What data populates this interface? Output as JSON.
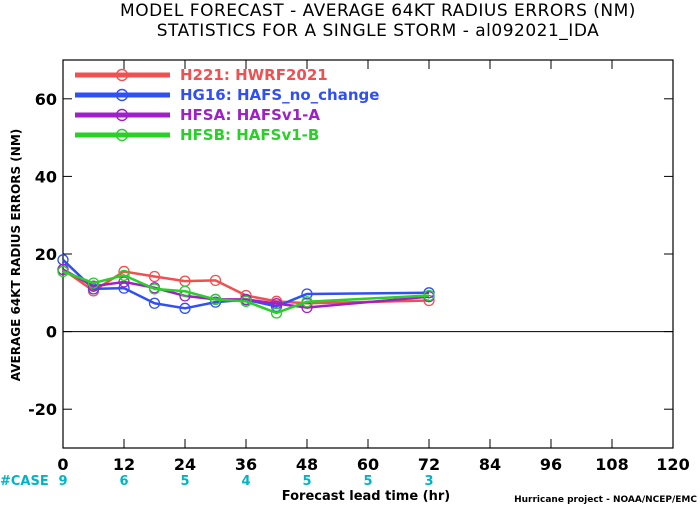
{
  "chart_data": {
    "type": "line",
    "title": "MODEL FORECAST - AVERAGE 64KT RADIUS ERRORS (NM)",
    "subtitle": "STATISTICS FOR A SINGLE STORM - al092021_IDA",
    "xlabel": "Forecast lead time (hr)",
    "ylabel": "AVERAGE 64KT RADIUS ERRORS (NM)",
    "xlim": [
      0,
      120
    ],
    "ylim": [
      -30,
      70
    ],
    "x_ticks": [
      0,
      12,
      24,
      36,
      48,
      60,
      72,
      84,
      96,
      108,
      120
    ],
    "y_ticks": [
      -20,
      0,
      20,
      40,
      60
    ],
    "grid": false,
    "zero_line": true,
    "legend_position": "top-left",
    "series": [
      {
        "name": "H221: HWRF2021",
        "color": "#f05050",
        "x": [
          0,
          6,
          12,
          18,
          24,
          30,
          36,
          42,
          48,
          72
        ],
        "y": [
          16,
          10.5,
          15.5,
          14.2,
          13,
          13.2,
          9.3,
          7.8,
          7.3,
          8
        ]
      },
      {
        "name": "HG16: HAFS_no_change",
        "color": "#3050f0",
        "x": [
          0,
          6,
          12,
          18,
          24,
          30,
          36,
          42,
          48,
          72
        ],
        "y": [
          18.5,
          11,
          11.2,
          7.3,
          6,
          7.6,
          8.2,
          6.5,
          9.7,
          10
        ]
      },
      {
        "name": "HFSA: HAFSv1-A",
        "color": "#a020c8",
        "x": [
          0,
          6,
          12,
          18,
          24,
          30,
          36,
          42,
          48,
          72
        ],
        "y": [
          16,
          11.7,
          12.8,
          11.3,
          9.2,
          8.3,
          8.3,
          7.2,
          6.2,
          9
        ]
      },
      {
        "name": "HFSB: HAFSv1-B",
        "color": "#28d028",
        "x": [
          0,
          6,
          12,
          18,
          24,
          30,
          36,
          42,
          48,
          72
        ],
        "y": [
          15.5,
          12.5,
          14.5,
          11,
          10.4,
          8.3,
          7.8,
          4.8,
          7.7,
          9.3
        ]
      }
    ],
    "cases_label": "#CASE",
    "cases": [
      {
        "x": 0,
        "n": "9"
      },
      {
        "x": 12,
        "n": "6"
      },
      {
        "x": 24,
        "n": "5"
      },
      {
        "x": 36,
        "n": "4"
      },
      {
        "x": 48,
        "n": "5"
      },
      {
        "x": 60,
        "n": "5"
      },
      {
        "x": 72,
        "n": "3"
      }
    ],
    "credit": "Hurricane project - NOAA/NCEP/EMC"
  }
}
